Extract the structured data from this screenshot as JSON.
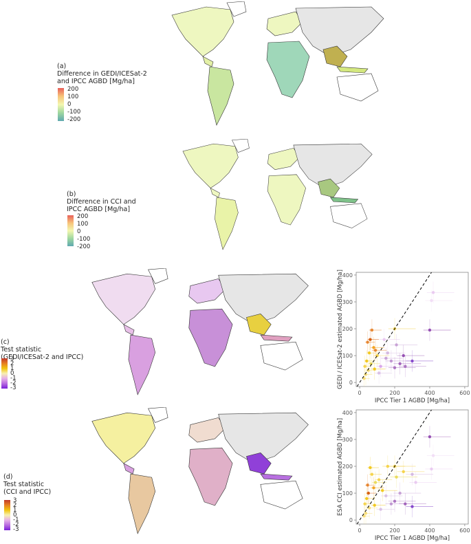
{
  "panels": {
    "a": {
      "label": "(a)",
      "title_lines": [
        "Difference in GEDI/ICESat-2",
        "and IPCC AGBD [Mg/ha]"
      ],
      "ticks": [
        "200",
        "100",
        "0",
        "-100",
        "-200"
      ],
      "scale": "diverging red-yellow-green-blue"
    },
    "b": {
      "label": "(b)",
      "title_lines": [
        "Difference in CCI and",
        "IPCC AGBD [Mg/ha]"
      ],
      "ticks": [
        "200",
        "100",
        "0",
        "-100",
        "-200"
      ],
      "scale": "diverging red-yellow-green-blue"
    },
    "c": {
      "label": "(c)",
      "title_lines": [
        "Test statistic",
        "(GEDI/ICESat-2 and IPCC)"
      ],
      "ticks": [
        "3",
        "2",
        "1",
        "0",
        "-1",
        "-2",
        "-3"
      ],
      "scale": "red-orange-yellow-pink-purple"
    },
    "d": {
      "label": "(d)",
      "title_lines": [
        "Test statistic",
        "(CCI and IPCC)"
      ],
      "ticks": [
        "3",
        "2",
        "1",
        "0",
        "-1",
        "-2",
        "-3"
      ],
      "scale": "red-orange-yellow-pink-purple"
    }
  },
  "chart_data": [
    {
      "type": "scatter",
      "title": "",
      "xlabel": "IPCC Tier 1 AGBD [Mg/ha]",
      "ylabel": "GEDI / ICESat-2 estimated AGBD [Mg/ha]",
      "xlim": [
        -20,
        620
      ],
      "ylim": [
        -15,
        410
      ],
      "xticks": [
        "0",
        "200",
        "400",
        "600"
      ],
      "yticks": [
        "0",
        "100",
        "200",
        "300",
        "400"
      ],
      "reference_line": "1:1 dashed",
      "grid": false,
      "points": [
        {
          "x": 60,
          "y": 160,
          "c": "#d35400"
        },
        {
          "x": 70,
          "y": 195,
          "c": "#e67e22"
        },
        {
          "x": 45,
          "y": 150,
          "c": "#e67e22"
        },
        {
          "x": 80,
          "y": 130,
          "c": "#f39c12"
        },
        {
          "x": 55,
          "y": 110,
          "c": "#f1c40f"
        },
        {
          "x": 40,
          "y": 80,
          "c": "#f1c40f"
        },
        {
          "x": 30,
          "y": 60,
          "c": "#f4d03f"
        },
        {
          "x": 50,
          "y": 45,
          "c": "#f7dc6f"
        },
        {
          "x": 35,
          "y": 30,
          "c": "#f7dc6f"
        },
        {
          "x": 65,
          "y": 70,
          "c": "#e8d84f"
        },
        {
          "x": 90,
          "y": 120,
          "c": "#e67e22"
        },
        {
          "x": 100,
          "y": 100,
          "c": "#f4d03f"
        },
        {
          "x": 120,
          "y": 60,
          "c": "#d7a1e8"
        },
        {
          "x": 150,
          "y": 90,
          "c": "#c39bd3"
        },
        {
          "x": 180,
          "y": 80,
          "c": "#bb8fce"
        },
        {
          "x": 200,
          "y": 55,
          "c": "#a569bd"
        },
        {
          "x": 230,
          "y": 70,
          "c": "#9b59b6"
        },
        {
          "x": 250,
          "y": 100,
          "c": "#8e44ad"
        },
        {
          "x": 260,
          "y": 60,
          "c": "#a569bd"
        },
        {
          "x": 300,
          "y": 80,
          "c": "#7d3cc8"
        },
        {
          "x": 210,
          "y": 140,
          "c": "#c39bd3"
        },
        {
          "x": 160,
          "y": 110,
          "c": "#d2b4de"
        },
        {
          "x": 140,
          "y": 160,
          "c": "#e8c6ef"
        },
        {
          "x": 400,
          "y": 195,
          "c": "#8e44ad"
        },
        {
          "x": 420,
          "y": 335,
          "c": "#e8c6ef"
        },
        {
          "x": 410,
          "y": 305,
          "c": "#f1dcf5"
        },
        {
          "x": 200,
          "y": 200,
          "c": "#f4d03f"
        },
        {
          "x": 25,
          "y": 15,
          "c": "#f7dc6f"
        },
        {
          "x": 110,
          "y": 35,
          "c": "#d7bde2"
        },
        {
          "x": 85,
          "y": 50,
          "c": "#f1c40f"
        }
      ]
    },
    {
      "type": "scatter",
      "title": "",
      "xlabel": "IPCC Tier 1 AGBD [Mg/ha]",
      "ylabel": "ESA CCI estimated AGBD [Mg/ha]",
      "xlim": [
        -20,
        620
      ],
      "ylim": [
        -15,
        410
      ],
      "xticks": [
        "0",
        "200",
        "400",
        "600"
      ],
      "yticks": [
        "0",
        "100",
        "200",
        "300",
        "400"
      ],
      "reference_line": "1:1 dashed",
      "grid": false,
      "points": [
        {
          "x": 60,
          "y": 195,
          "c": "#f1c40f"
        },
        {
          "x": 70,
          "y": 170,
          "c": "#f4d03f"
        },
        {
          "x": 45,
          "y": 130,
          "c": "#e67e22"
        },
        {
          "x": 80,
          "y": 120,
          "c": "#f39c12"
        },
        {
          "x": 50,
          "y": 100,
          "c": "#d35400"
        },
        {
          "x": 40,
          "y": 80,
          "c": "#f1c40f"
        },
        {
          "x": 30,
          "y": 60,
          "c": "#f4d03f"
        },
        {
          "x": 55,
          "y": 45,
          "c": "#f7dc6f"
        },
        {
          "x": 35,
          "y": 25,
          "c": "#f7dc6f"
        },
        {
          "x": 90,
          "y": 140,
          "c": "#e8d84f"
        },
        {
          "x": 110,
          "y": 150,
          "c": "#f4d03f"
        },
        {
          "x": 130,
          "y": 110,
          "c": "#f1c40f"
        },
        {
          "x": 150,
          "y": 90,
          "c": "#d7bde2"
        },
        {
          "x": 180,
          "y": 60,
          "c": "#bb8fce"
        },
        {
          "x": 200,
          "y": 70,
          "c": "#a569bd"
        },
        {
          "x": 230,
          "y": 100,
          "c": "#c39bd3"
        },
        {
          "x": 260,
          "y": 60,
          "c": "#9b59b6"
        },
        {
          "x": 300,
          "y": 50,
          "c": "#7d3cc8"
        },
        {
          "x": 210,
          "y": 160,
          "c": "#e8d84f"
        },
        {
          "x": 250,
          "y": 180,
          "c": "#f4d03f"
        },
        {
          "x": 300,
          "y": 170,
          "c": "#d2b4de"
        },
        {
          "x": 400,
          "y": 310,
          "c": "#8e44ad"
        },
        {
          "x": 420,
          "y": 240,
          "c": "#f1dcf5"
        },
        {
          "x": 410,
          "y": 190,
          "c": "#e8c6ef"
        },
        {
          "x": 200,
          "y": 200,
          "c": "#f4d03f"
        },
        {
          "x": 25,
          "y": 15,
          "c": "#f7dc6f"
        },
        {
          "x": 120,
          "y": 40,
          "c": "#d7bde2"
        },
        {
          "x": 85,
          "y": 55,
          "c": "#f1c40f"
        },
        {
          "x": 160,
          "y": 200,
          "c": "#f4d03f"
        },
        {
          "x": 320,
          "y": 140,
          "c": "#e8c6ef"
        }
      ]
    }
  ]
}
